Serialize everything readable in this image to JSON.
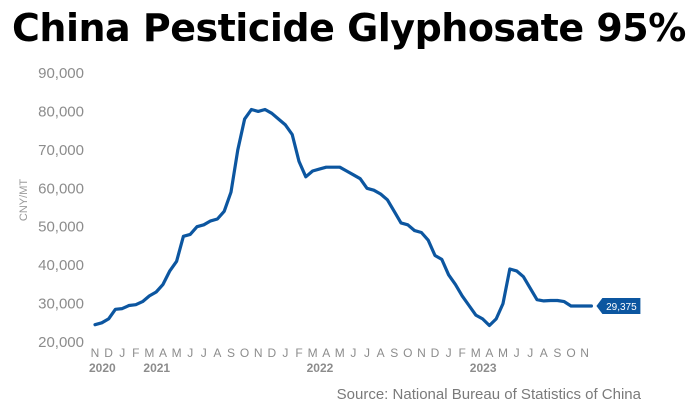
{
  "chart_data": {
    "type": "line",
    "title": "China Pesticide Glyphosate 95%",
    "ylabel": "CNY/MT",
    "xlabel": "",
    "ylim": [
      20000,
      90000
    ],
    "yticks": [
      "20,000",
      "30,000",
      "40,000",
      "50,000",
      "60,000",
      "70,000",
      "80,000",
      "90,000"
    ],
    "ytick_values": [
      20000,
      30000,
      40000,
      50000,
      60000,
      70000,
      80000,
      90000
    ],
    "x_month_labels": [
      "N",
      "D",
      "J",
      "F",
      "M",
      "A",
      "M",
      "J",
      "J",
      "A",
      "S",
      "O",
      "N",
      "D",
      "J",
      "F",
      "M",
      "A",
      "M",
      "J",
      "J",
      "A",
      "S",
      "O",
      "N",
      "D",
      "J",
      "F",
      "M",
      "A",
      "M",
      "J",
      "J",
      "A",
      "S",
      "O",
      "N"
    ],
    "x_year_labels": [
      {
        "label": "2020",
        "month_index": 0
      },
      {
        "label": "2021",
        "month_index": 4
      },
      {
        "label": "2022",
        "month_index": 16
      },
      {
        "label": "2023",
        "month_index": 28
      }
    ],
    "grid": false,
    "series": [
      {
        "color": "#0c56a0",
        "x": [
          0,
          0.5,
          1,
          1.5,
          2,
          2.5,
          3,
          3.5,
          4,
          4.5,
          5,
          5.5,
          6,
          6.5,
          7,
          7.5,
          8,
          8.5,
          9,
          9.5,
          10,
          10.5,
          11,
          11.5,
          12,
          12.5,
          13,
          13.5,
          14,
          14.5,
          15,
          15.5,
          16,
          16.5,
          17,
          17.5,
          18,
          18.5,
          19,
          19.5,
          20,
          20.5,
          21,
          21.5,
          22,
          22.5,
          23,
          23.5,
          24,
          24.5,
          25,
          25.5,
          26,
          26.5,
          27,
          27.5,
          28,
          28.5,
          29,
          29.5,
          30,
          30.5,
          31,
          31.5,
          32,
          32.5,
          33,
          33.5,
          34,
          34.5,
          35,
          35.5,
          36,
          36.5
        ],
        "values": [
          24500,
          25000,
          26000,
          28500,
          28700,
          29500,
          29700,
          30500,
          32000,
          33000,
          35000,
          38500,
          41000,
          47500,
          48000,
          50000,
          50500,
          51500,
          52000,
          54000,
          59000,
          70000,
          78000,
          80500,
          80000,
          80500,
          79500,
          78000,
          76500,
          74000,
          67000,
          63000,
          64500,
          65000,
          65500,
          65500,
          65500,
          64500,
          63500,
          62500,
          60000,
          59500,
          58500,
          57000,
          54000,
          51000,
          50500,
          49000,
          48500,
          46500,
          42500,
          41500,
          37500,
          35000,
          32000,
          29500,
          27000,
          26000,
          24300,
          26000,
          30000,
          39000,
          38500,
          37000,
          34000,
          31000,
          30700,
          30800,
          30800,
          30500,
          29375,
          29375,
          29375,
          29375
        ]
      }
    ],
    "end_label": "29,375",
    "end_value": 29375
  },
  "source": "Source: National Bureau of Statistics of China"
}
